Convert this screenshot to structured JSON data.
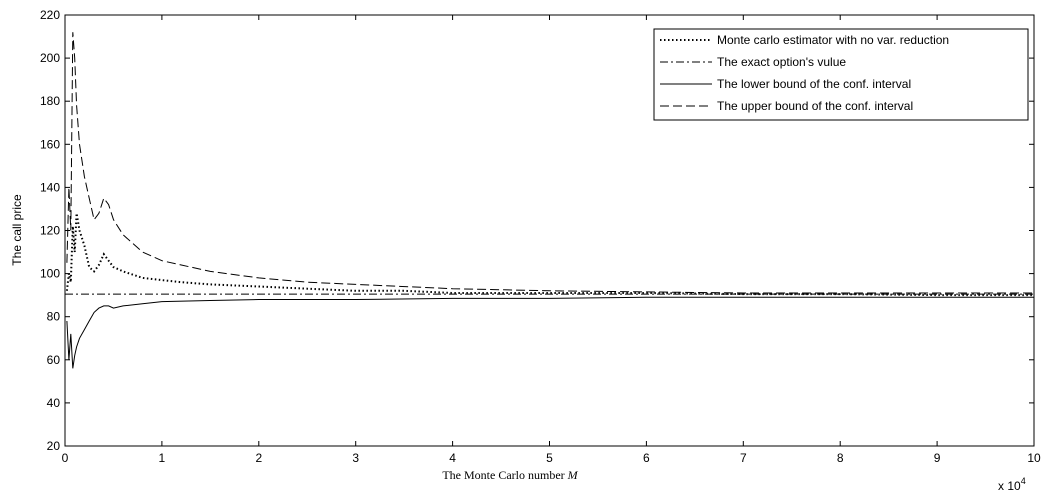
{
  "chart_data": {
    "type": "line",
    "title": "",
    "xlabel": "The Monte Carlo number",
    "xlabel_var": "M",
    "ylabel": "The call price",
    "x_multiplier": "x 10",
    "x_multiplier_exp": "4",
    "xlim": [
      0,
      10
    ],
    "ylim": [
      20,
      220
    ],
    "xticks": [
      "0",
      "1",
      "2",
      "3",
      "4",
      "5",
      "6",
      "7",
      "8",
      "9",
      "10"
    ],
    "yticks": [
      "20",
      "40",
      "60",
      "80",
      "100",
      "120",
      "140",
      "160",
      "180",
      "200",
      "220"
    ],
    "grid": false,
    "legend_position": "top-right",
    "series": [
      {
        "name": "Monte carlo estimator with no var. reduction",
        "style": "dotted",
        "x": [
          0.02,
          0.04,
          0.06,
          0.08,
          0.1,
          0.12,
          0.15,
          0.2,
          0.25,
          0.3,
          0.35,
          0.4,
          0.45,
          0.5,
          0.6,
          0.8,
          1.0,
          1.2,
          1.5,
          2,
          2.5,
          3,
          3.5,
          4,
          5,
          6,
          7,
          8,
          9,
          10
        ],
        "y": [
          92,
          100,
          96,
          122,
          110,
          128,
          120,
          113,
          103,
          101,
          104,
          109,
          106,
          103,
          101,
          98,
          97,
          96,
          95,
          94,
          93,
          92,
          92,
          91,
          91,
          91,
          90.5,
          90.5,
          90,
          90
        ]
      },
      {
        "name": "The exact option's vulue",
        "style": "dashdot",
        "x": [
          0,
          10
        ],
        "y": [
          90.5,
          90.5
        ]
      },
      {
        "name": "The lower bound of the conf. interval",
        "style": "solid",
        "x": [
          0.02,
          0.04,
          0.06,
          0.08,
          0.1,
          0.12,
          0.15,
          0.2,
          0.25,
          0.3,
          0.35,
          0.4,
          0.45,
          0.5,
          0.6,
          0.8,
          1.0,
          1.5,
          2,
          3,
          4,
          5,
          6,
          7,
          8,
          9,
          10
        ],
        "y": [
          78,
          60,
          72,
          56,
          62,
          66,
          70,
          74,
          78,
          82,
          84,
          85,
          85,
          84,
          85,
          86,
          87,
          87.5,
          88,
          88,
          88.5,
          88.5,
          89,
          89,
          89,
          89,
          89
        ]
      },
      {
        "name": "The upper bound of the conf. interval",
        "style": "dashed",
        "x": [
          0.02,
          0.04,
          0.06,
          0.08,
          0.1,
          0.12,
          0.15,
          0.2,
          0.25,
          0.3,
          0.35,
          0.4,
          0.45,
          0.5,
          0.6,
          0.8,
          1.0,
          1.2,
          1.5,
          2,
          2.5,
          3,
          4,
          5,
          6,
          7,
          8,
          9,
          10
        ],
        "y": [
          105,
          140,
          120,
          212,
          200,
          178,
          160,
          145,
          135,
          125,
          128,
          135,
          132,
          125,
          118,
          110,
          106,
          104,
          101,
          98,
          96,
          95,
          93,
          92,
          91.5,
          91,
          91,
          91,
          91
        ]
      }
    ]
  }
}
